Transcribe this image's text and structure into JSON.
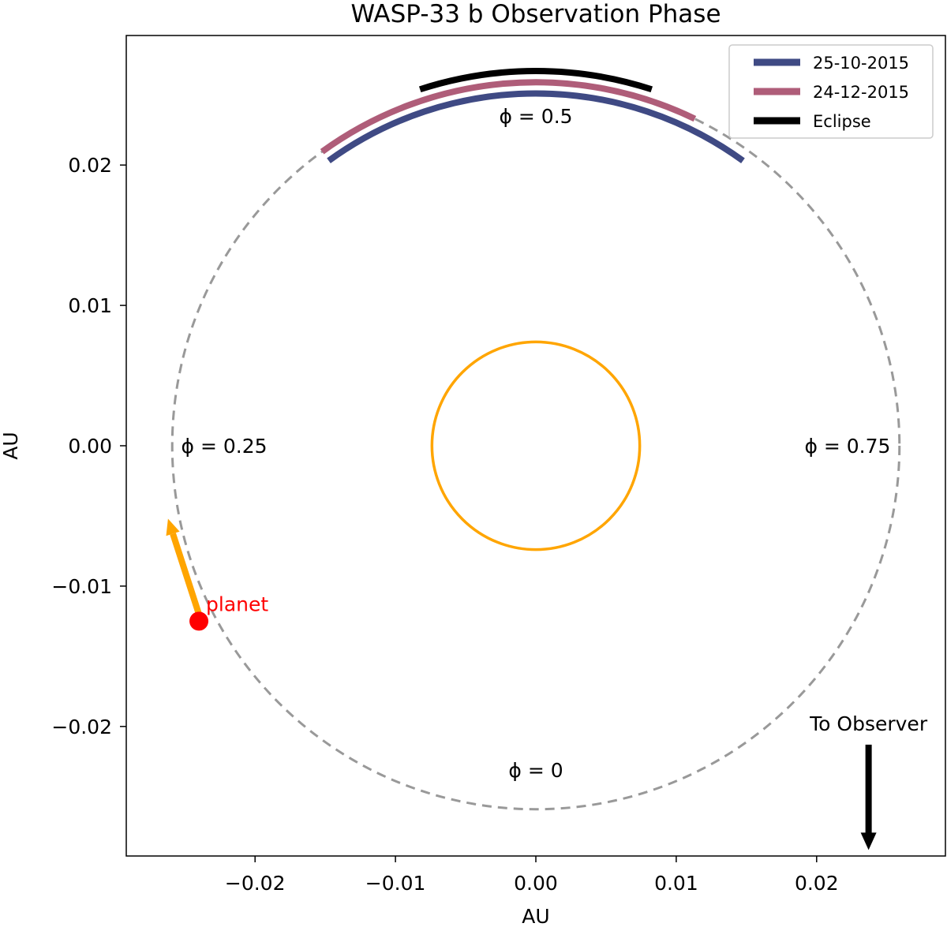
{
  "chart_data": {
    "type": "orbit-diagram",
    "title": "WASP-33 b Observation Phase",
    "xlabel": "AU",
    "ylabel": "AU",
    "xlim": [
      -0.029,
      0.029
    ],
    "ylim": [
      -0.029,
      0.029
    ],
    "xticks": [
      -0.02,
      -0.01,
      0.0,
      0.01,
      0.02
    ],
    "yticks": [
      -0.02,
      -0.01,
      0.0,
      0.01,
      0.02
    ],
    "xtick_labels": [
      "−0.02",
      "−0.01",
      "0.00",
      "0.01",
      "0.02"
    ],
    "ytick_labels": [
      "−0.02",
      "−0.01",
      "0.00",
      "0.01",
      "0.02"
    ],
    "orbit_radius_au": 0.0259,
    "star_radius_au": 0.0074,
    "star_color": "#FFA500",
    "orbit_color": "#999999",
    "phase_labels": [
      {
        "text": "ϕ = 0.5",
        "x": 0.0,
        "y": 0.0235
      },
      {
        "text": "ϕ = 0.25",
        "x": -0.0222,
        "y": 0.0
      },
      {
        "text": "ϕ = 0.75",
        "x": 0.0222,
        "y": 0.0
      },
      {
        "text": "ϕ = 0",
        "x": 0.0,
        "y": -0.0231
      }
    ],
    "series": [
      {
        "name": "25-10-2015",
        "color": "#3F4A84",
        "radius_au": 0.0251,
        "phase_start": 0.4,
        "phase_end": 0.6
      },
      {
        "name": "24-12-2015",
        "color": "#AF5D79",
        "radius_au": 0.0259,
        "phase_start": 0.4,
        "phase_end": 0.572
      },
      {
        "name": "Eclipse",
        "color": "#000000",
        "radius_au": 0.0267,
        "phase_start": 0.45,
        "phase_end": 0.55
      }
    ],
    "planet": {
      "label": "planet",
      "x": -0.024,
      "y": -0.0125,
      "color": "#FF0000"
    },
    "velocity_arrow": {
      "x0": -0.024,
      "y0": -0.012,
      "x1": -0.0262,
      "y1": -0.0052,
      "color": "#FFA500"
    },
    "observer": {
      "label": "To Observer",
      "x": 0.0237,
      "y0": -0.0213,
      "y1": -0.0288
    },
    "legend_position": "top-right"
  }
}
